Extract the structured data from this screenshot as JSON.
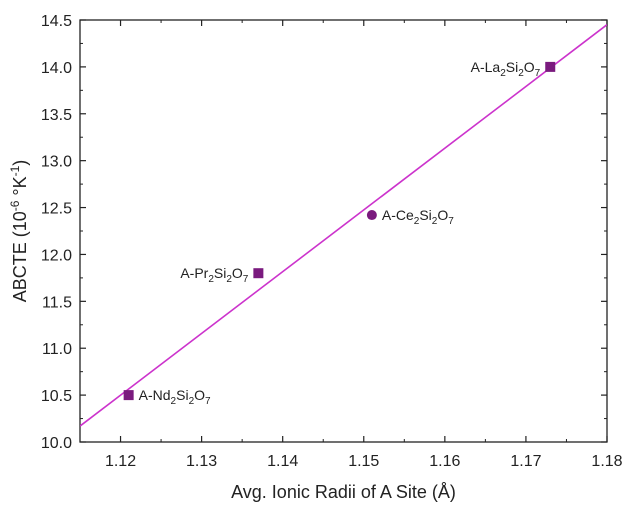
{
  "chart_data": {
    "type": "scatter",
    "xlabel": "Avg. Ionic Radii of A Site (Å)",
    "ylabel": {
      "base": "ABCTE (10",
      "sup1": "-6",
      "mid": " °K",
      "sup2": "-1",
      "end": ")"
    },
    "xlim": [
      1.115,
      1.18
    ],
    "ylim": [
      10.0,
      14.5
    ],
    "x_ticks": [
      "1.12",
      "1.13",
      "1.14",
      "1.15",
      "1.16",
      "1.17",
      "1.18"
    ],
    "x_tick_values": [
      1.12,
      1.13,
      1.14,
      1.15,
      1.16,
      1.17,
      1.18
    ],
    "y_ticks": [
      "10.0",
      "10.5",
      "11.0",
      "11.5",
      "12.0",
      "12.5",
      "13.0",
      "13.5",
      "14.0",
      "14.5"
    ],
    "y_tick_values": [
      10.0,
      10.5,
      11.0,
      11.5,
      12.0,
      12.5,
      13.0,
      13.5,
      14.0,
      14.5
    ],
    "grid": false,
    "points": [
      {
        "x": 1.121,
        "y": 10.5,
        "marker": "square",
        "label": {
          "prefix": "A-Nd",
          "sub1": "2",
          "mid": "Si",
          "sub2": "2",
          "mid2": "O",
          "sub3": "7"
        },
        "label_side": "right"
      },
      {
        "x": 1.137,
        "y": 11.8,
        "marker": "square",
        "label": {
          "prefix": "A-Pr",
          "sub1": "2",
          "mid": "Si",
          "sub2": "2",
          "mid2": "O",
          "sub3": "7"
        },
        "label_side": "left"
      },
      {
        "x": 1.151,
        "y": 12.42,
        "marker": "circle",
        "label": {
          "prefix": "A-Ce",
          "sub1": "2",
          "mid": "Si",
          "sub2": "2",
          "mid2": "O",
          "sub3": "7"
        },
        "label_side": "right"
      },
      {
        "x": 1.173,
        "y": 14.0,
        "marker": "square",
        "label": {
          "prefix": "A-La",
          "sub1": "2",
          "mid": "Si",
          "sub2": "2",
          "mid2": "O",
          "sub3": "7"
        },
        "label_side": "left"
      }
    ],
    "fit_line": {
      "x": [
        1.115,
        1.18
      ],
      "y": [
        10.17,
        14.45
      ]
    },
    "colors": {
      "marker": "#7a1a7e",
      "fit": "#cc33cc",
      "axis": "#222222"
    }
  }
}
